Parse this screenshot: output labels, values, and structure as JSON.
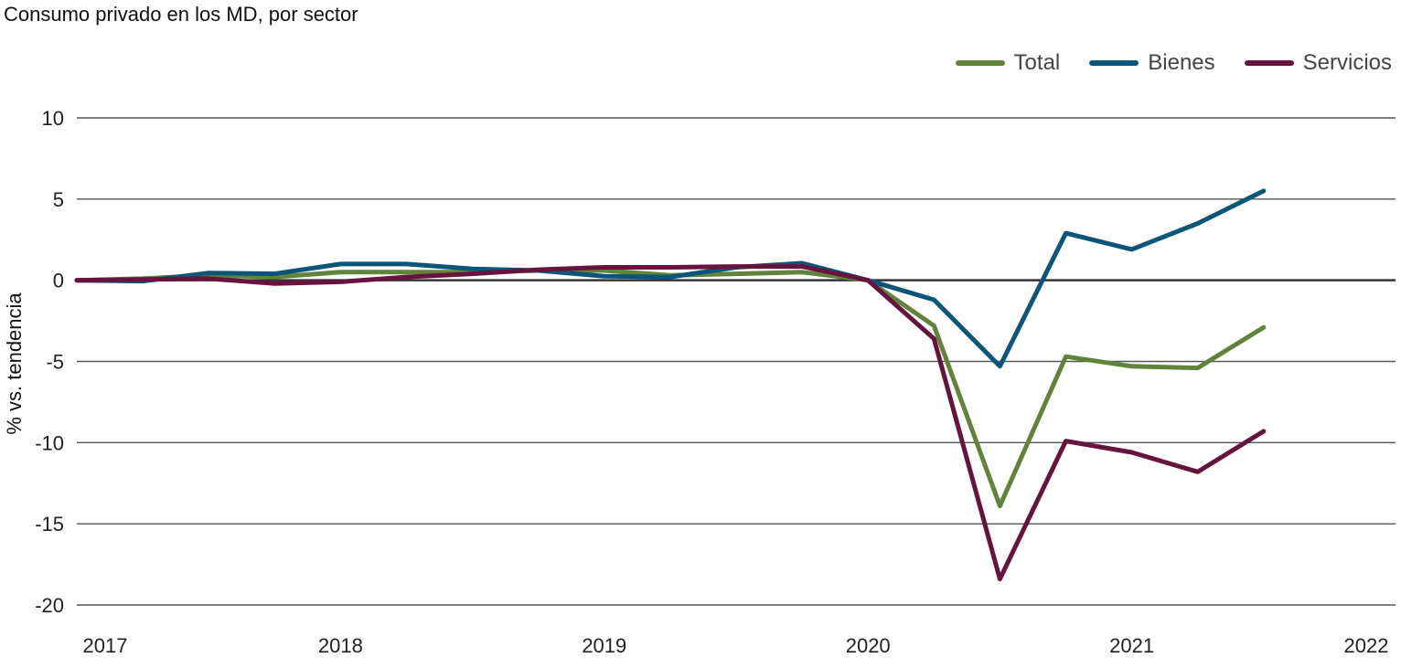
{
  "chart_data": {
    "type": "line",
    "title": "Consumo privado en los MD, por sector",
    "ylabel": "% vs. tendencia",
    "xlabel": "",
    "ylim": [
      -20,
      10
    ],
    "xlim": [
      2017,
      2022
    ],
    "yticks": [
      10,
      5,
      0,
      -5,
      -10,
      -15,
      -20
    ],
    "xticks": [
      "2017",
      "2018",
      "2019",
      "2020",
      "2021",
      "2022"
    ],
    "grid": true,
    "legend_position": "top-right",
    "x": [
      2017.0,
      2017.25,
      2017.5,
      2017.75,
      2018.0,
      2018.25,
      2018.5,
      2018.75,
      2019.0,
      2019.25,
      2019.5,
      2019.75,
      2020.0,
      2020.25,
      2020.5,
      2020.75,
      2021.0,
      2021.25,
      2021.5
    ],
    "series": [
      {
        "name": "Total",
        "color": "#62843a",
        "values": [
          0.0,
          0.1,
          0.3,
          0.2,
          0.5,
          0.5,
          0.5,
          0.6,
          0.6,
          0.3,
          0.4,
          0.5,
          0.0,
          -2.8,
          -13.9,
          -4.7,
          -5.3,
          -5.4,
          -2.9
        ]
      },
      {
        "name": "Bienes",
        "color": "#0b5578",
        "values": [
          0.0,
          -0.05,
          0.45,
          0.4,
          1.0,
          1.0,
          0.7,
          0.6,
          0.25,
          0.2,
          0.8,
          1.05,
          0.0,
          -1.2,
          -5.3,
          2.9,
          1.9,
          3.5,
          5.5
        ]
      },
      {
        "name": "Servicios",
        "color": "#66133e",
        "values": [
          0.0,
          0.05,
          0.1,
          -0.2,
          -0.1,
          0.2,
          0.4,
          0.65,
          0.8,
          0.8,
          0.85,
          0.85,
          0.0,
          -3.6,
          -18.4,
          -9.9,
          -10.6,
          -11.8,
          -9.3
        ]
      }
    ]
  }
}
